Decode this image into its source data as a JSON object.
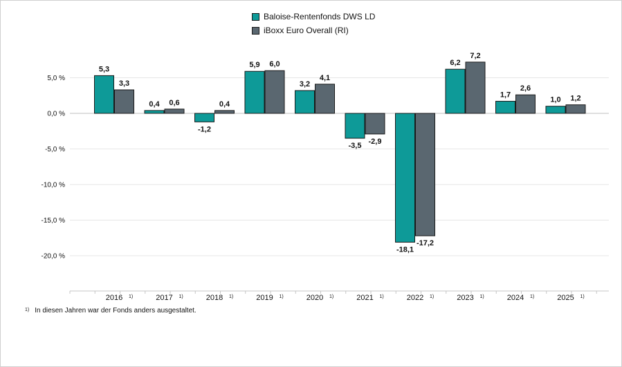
{
  "chart_data": {
    "type": "bar",
    "categories": [
      "2016",
      "2017",
      "2018",
      "2019",
      "2020",
      "2021",
      "2022",
      "2023",
      "2024",
      "2025"
    ],
    "category_note": "1)",
    "series": [
      {
        "name": "Baloise-Rentenfonds DWS LD",
        "color": "#0e9a98",
        "values": [
          5.3,
          0.4,
          -1.2,
          5.9,
          3.2,
          -3.5,
          -18.1,
          6.2,
          1.7,
          1.0
        ],
        "labels": [
          "5,3",
          "0,4",
          "-1,2",
          "5,9",
          "3,2",
          "-3,5",
          "-18,1",
          "6,2",
          "1,7",
          "1,0"
        ]
      },
      {
        "name": "iBoxx Euro Overall (RI)",
        "color": "#5a6770",
        "values": [
          3.3,
          0.6,
          0.4,
          6.0,
          4.1,
          -2.9,
          -17.2,
          7.2,
          2.6,
          1.2
        ],
        "labels": [
          "3,3",
          "0,6",
          "0,4",
          "6,0",
          "4,1",
          "-2,9",
          "-17,2",
          "7,2",
          "2,6",
          "1,2"
        ]
      }
    ],
    "yticks": [
      5,
      0,
      -5,
      -10,
      -15,
      -20
    ],
    "ytick_labels": [
      "5,0 %",
      "0,0 %",
      "-5,0 %",
      "-10,0 %",
      "-15,0 %",
      "-20,0 %"
    ],
    "ylim": [
      -24,
      10
    ],
    "grid": true,
    "legend_position": "top-center"
  },
  "footnote": {
    "marker": "1)",
    "text": "In diesen Jahren war der Fonds anders ausgestaltet."
  }
}
